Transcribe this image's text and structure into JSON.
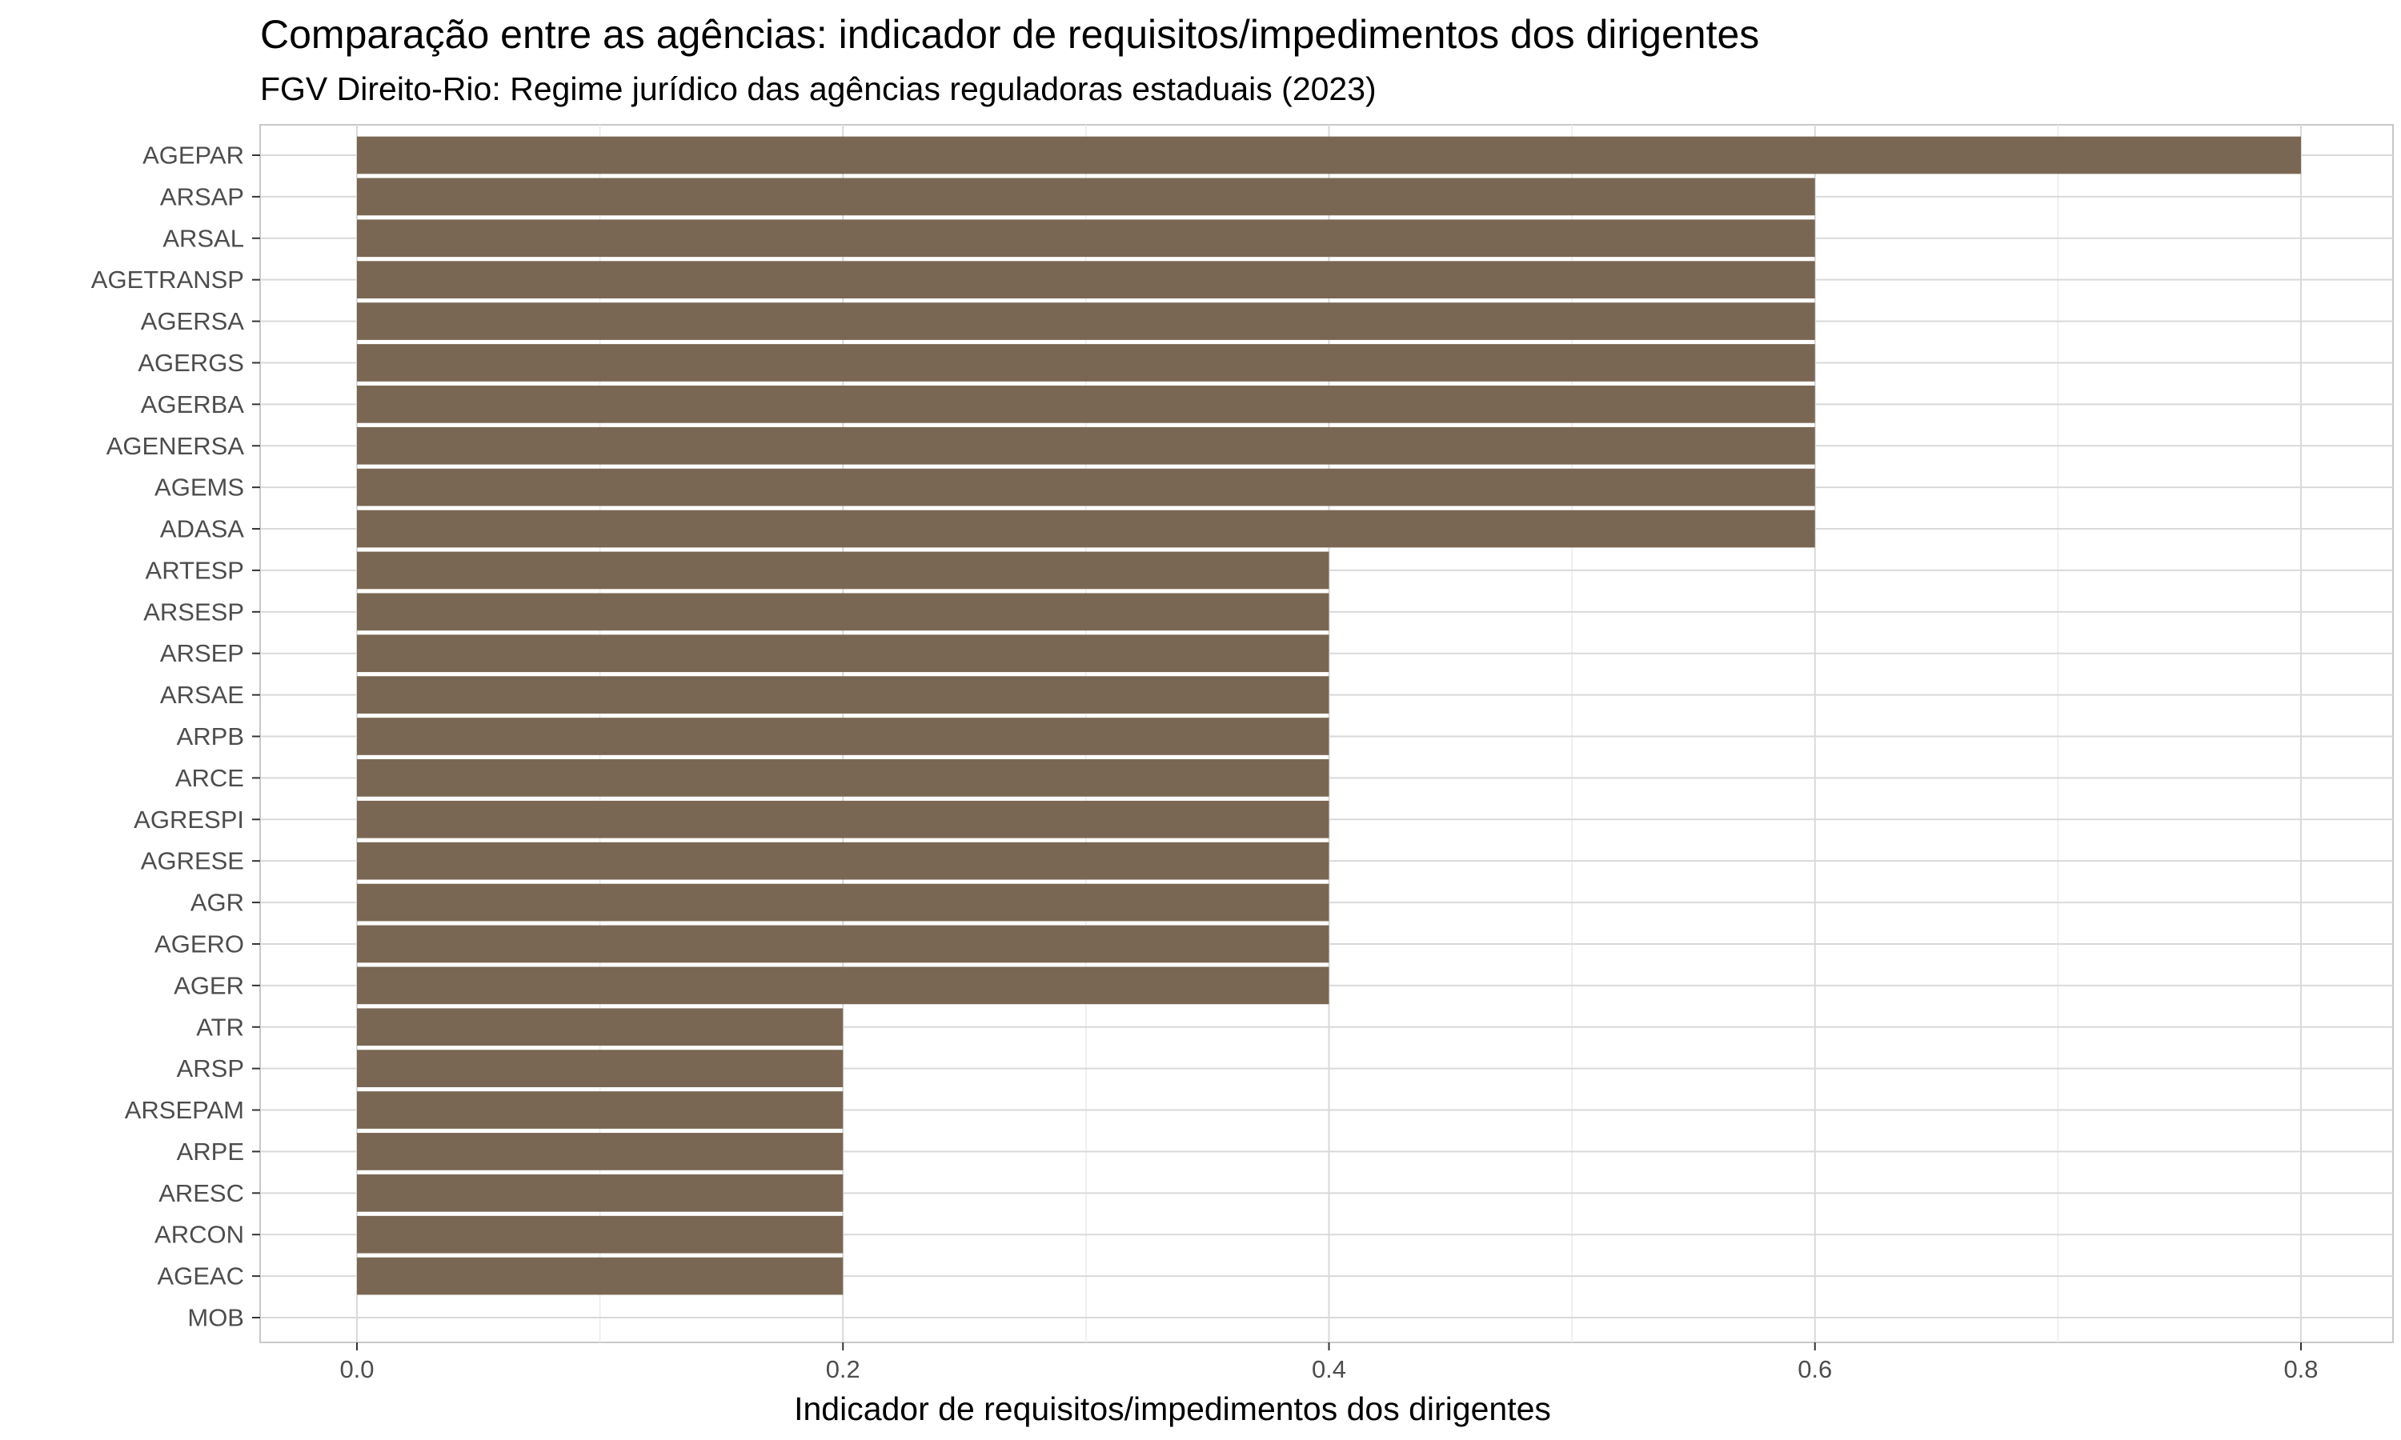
{
  "chart_data": {
    "type": "bar",
    "orientation": "horizontal",
    "title": "Comparação entre as agências: indicador de requisitos/impedimentos dos dirigentes",
    "subtitle": "FGV Direito-Rio: Regime jurídico das agências reguladoras estaduais (2023)",
    "xlabel": "Indicador de requisitos/impedimentos dos dirigentes",
    "ylabel": "",
    "xlim": [
      0,
      0.84
    ],
    "x_ticks": [
      0.0,
      0.2,
      0.4,
      0.6,
      0.8
    ],
    "x_tick_labels": [
      "0.0",
      "0.2",
      "0.4",
      "0.6",
      "0.8"
    ],
    "grid": true,
    "legend": "none",
    "bar_color": "#7a6753",
    "grid_color": "#d9d9d9",
    "categories": [
      "AGEPAR",
      "ARSAP",
      "ARSAL",
      "AGETRANSP",
      "AGERSA",
      "AGERGS",
      "AGERBA",
      "AGENERSA",
      "AGEMS",
      "ADASA",
      "ARTESP",
      "ARSESP",
      "ARSEP",
      "ARSAE",
      "ARPB",
      "ARCE",
      "AGRESPI",
      "AGRESE",
      "AGR",
      "AGERO",
      "AGER",
      "ATR",
      "ARSP",
      "ARSEPAM",
      "ARPE",
      "ARESC",
      "ARCON",
      "AGEAC",
      "MOB"
    ],
    "values": [
      0.8,
      0.6,
      0.6,
      0.6,
      0.6,
      0.6,
      0.6,
      0.6,
      0.6,
      0.6,
      0.4,
      0.4,
      0.4,
      0.4,
      0.4,
      0.4,
      0.4,
      0.4,
      0.4,
      0.4,
      0.4,
      0.2,
      0.2,
      0.2,
      0.2,
      0.2,
      0.2,
      0.2,
      0.0
    ]
  }
}
